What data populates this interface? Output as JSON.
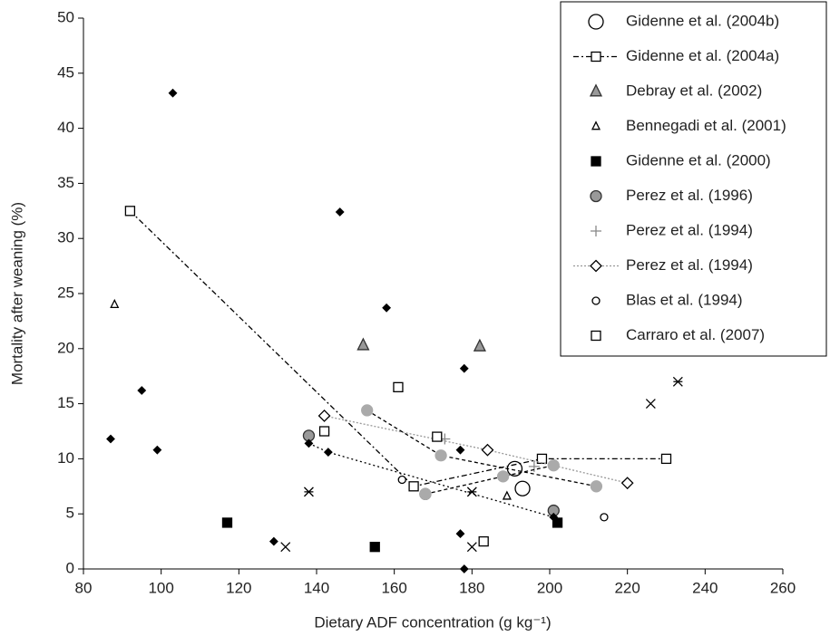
{
  "chart_data": {
    "type": "scatter",
    "x_label": "Dietary ADF concentration (g kg⁻¹)",
    "y_label": "Mortality after weaning (%)",
    "xlim": [
      80,
      260
    ],
    "xticks": [
      80,
      100,
      120,
      140,
      160,
      180,
      200,
      220,
      240,
      260
    ],
    "ylim": [
      0,
      50
    ],
    "yticks": [
      0,
      5,
      10,
      15,
      20,
      25,
      30,
      35,
      40,
      45,
      50
    ],
    "grid": false,
    "legend": "top-right",
    "series": [
      {
        "name": "Gidenne et al. (2004b)",
        "marker": "circle",
        "size": 8,
        "color": "#000000",
        "fill": "#ffffff",
        "x": [
          191,
          193
        ],
        "values": [
          9.1,
          7.3
        ]
      },
      {
        "name": "Gidenne et al. (2004a)",
        "marker": "square",
        "size": 5,
        "color": "#000000",
        "fill": "#ffffff",
        "line": "dashdot",
        "x": [
          92,
          165,
          198,
          230
        ],
        "values": [
          32.5,
          7.5,
          10,
          10
        ]
      },
      {
        "name": "Debray et al. (2002)",
        "marker": "triangle",
        "size": 6,
        "color": "#333333",
        "fill": "#999999",
        "x": [
          152,
          182
        ],
        "values": [
          20.3,
          20.2
        ]
      },
      {
        "name": "Bennegadi et al. (2001)",
        "marker": "triangle",
        "size": 4,
        "color": "#000000",
        "fill": "#ffffff",
        "x": [
          88,
          189
        ],
        "values": [
          24,
          6.6
        ]
      },
      {
        "name": "Gidenne et al. (2000)",
        "marker": "square",
        "size": 5,
        "color": "#000000",
        "fill": "#000000",
        "x": [
          117,
          155,
          202
        ],
        "values": [
          4.2,
          2,
          4.2
        ]
      },
      {
        "name": "Perez et al. (1996)",
        "marker": "circle",
        "size": 6,
        "color": "#333333",
        "fill": "#999999",
        "x": [
          138,
          168,
          201
        ],
        "values": [
          12.1,
          6.8,
          5.3
        ]
      },
      {
        "name": "Perez et al. (1994)",
        "marker": "plus",
        "size": 6,
        "color": "#888888",
        "fill": "none",
        "x": [
          173,
          196
        ],
        "values": [
          11.8,
          9.3
        ]
      },
      {
        "name": "Perez et al. (1994)",
        "marker": "diamond",
        "size": 6,
        "color": "#000000",
        "fill": "#ffffff",
        "line": "dotted-gray",
        "x": [
          142,
          184,
          220
        ],
        "values": [
          13.9,
          10.8,
          7.8
        ]
      },
      {
        "name": "Blas et al. (1994)",
        "marker": "circle",
        "size": 4,
        "color": "#000000",
        "fill": "#ffffff",
        "x": [
          162,
          214
        ],
        "values": [
          8.1,
          4.7
        ]
      },
      {
        "name": "Carraro et al. (2007)",
        "marker": "square",
        "size": 5,
        "color": "#000000",
        "fill": "#ffffff",
        "x": [
          142,
          161,
          171,
          183
        ],
        "values": [
          12.5,
          16.5,
          12,
          2.5
        ]
      },
      {
        "marker": "circle",
        "size": 6,
        "color": "#aaaaaa",
        "fill": "#aaaaaa",
        "line": "dashed",
        "x": [
          153,
          172,
          212
        ],
        "values": [
          14.4,
          10.3,
          7.5
        ]
      },
      {
        "marker": "circle",
        "size": 6,
        "color": "#aaaaaa",
        "fill": "#aaaaaa",
        "line": "dashed",
        "x": [
          168,
          188,
          201
        ],
        "values": [
          6.8,
          8.4,
          9.4
        ]
      },
      {
        "marker": "diamond",
        "size": 4,
        "color": "#000000",
        "fill": "#000000",
        "line": "dotted",
        "x": [
          138,
          143,
          201
        ],
        "values": [
          11.4,
          10.6,
          4.7
        ]
      },
      {
        "marker": "diamond",
        "size": 4,
        "color": "#000000",
        "fill": "#000000",
        "x": [
          87,
          95,
          99,
          103,
          129,
          146,
          158,
          177,
          178,
          177,
          178
        ],
        "values": [
          11.8,
          16.2,
          10.8,
          43.2,
          2.5,
          32.4,
          23.7,
          10.8,
          18.2,
          3.2,
          0
        ]
      },
      {
        "marker": "x",
        "size": 5,
        "color": "#000000",
        "fill": "none",
        "x": [
          132,
          180,
          226
        ],
        "values": [
          2,
          2,
          15
        ]
      },
      {
        "marker": "star",
        "size": 5,
        "color": "#000000",
        "fill": "none",
        "x": [
          138,
          180,
          233
        ],
        "values": [
          7,
          7,
          17
        ]
      }
    ]
  }
}
